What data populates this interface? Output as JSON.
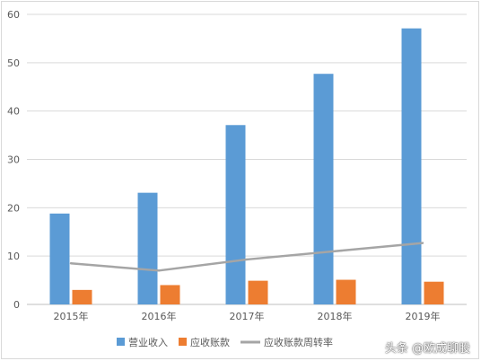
{
  "chart_data": {
    "type": "bar",
    "categories": [
      "2015年",
      "2016年",
      "2017年",
      "2018年",
      "2019年"
    ],
    "series": [
      {
        "name": "营业收入",
        "type": "bar",
        "color": "#5B9BD5",
        "values": [
          18.8,
          23.1,
          37.1,
          47.7,
          57.1
        ]
      },
      {
        "name": "应收账款",
        "type": "bar",
        "color": "#ED7D31",
        "values": [
          3.0,
          4.0,
          4.9,
          5.1,
          4.7
        ]
      },
      {
        "name": "应收账款周转率",
        "type": "line",
        "color": "#A5A5A5",
        "values": [
          8.5,
          7.0,
          9.3,
          11.0,
          12.7
        ]
      }
    ],
    "ylim": [
      0,
      60
    ],
    "yticks": [
      0,
      10,
      20,
      30,
      40,
      50,
      60
    ],
    "grid": true,
    "legend": "bottom"
  },
  "watermark": "头条 @欧成聊股"
}
